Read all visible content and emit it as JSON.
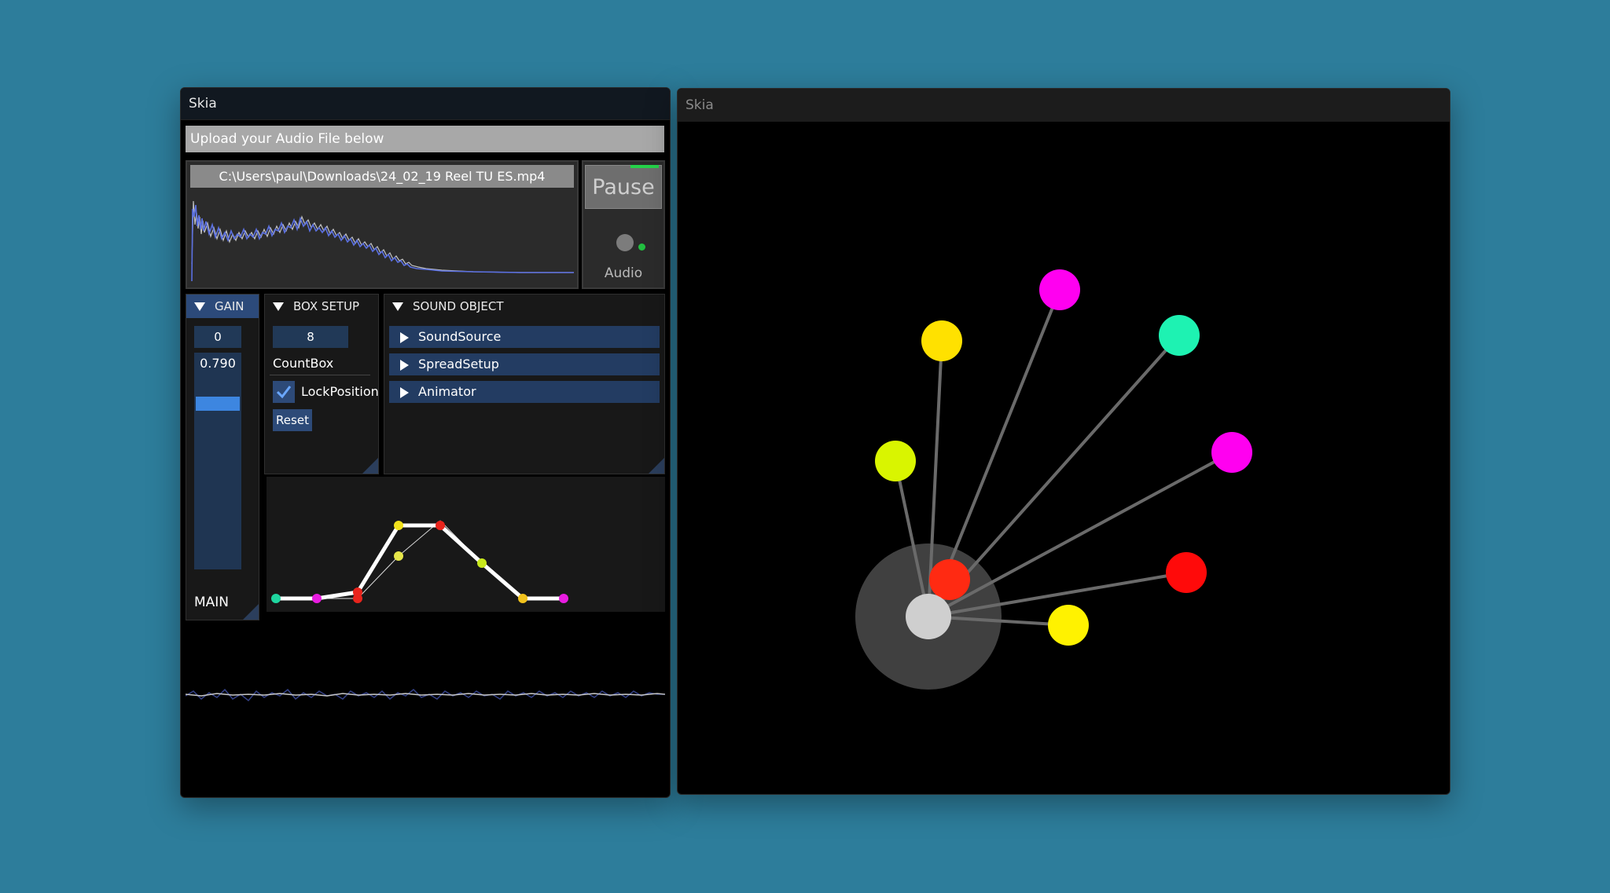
{
  "left_window": {
    "title": "Skia",
    "upload_label": "Upload your Audio File below",
    "file_path": "C:\\Users\\paul\\Downloads\\24_02_19 Reel TU ES.mp4",
    "pause_label": "Pause",
    "audio_label": "Audio",
    "gain": {
      "header": "GAIN",
      "offset_value": "0",
      "slider_value": "0.790",
      "footer": "MAIN"
    },
    "box_setup": {
      "header": "BOX SETUP",
      "count_value": "8",
      "count_label": "CountBox",
      "lock_label": "LockPosition",
      "lock_checked": true,
      "reset_label": "Reset"
    },
    "sound_object": {
      "header": "SOUND OBJECT",
      "items": [
        "SoundSource",
        "SpreadSetup",
        "Animator"
      ]
    }
  },
  "right_window": {
    "title": "Skia"
  },
  "colors": {
    "background": "#2d7d9b",
    "panel_blue": "#233c62",
    "accent_green": "#25d24a",
    "spectrum_line": "#5a6fe0"
  }
}
